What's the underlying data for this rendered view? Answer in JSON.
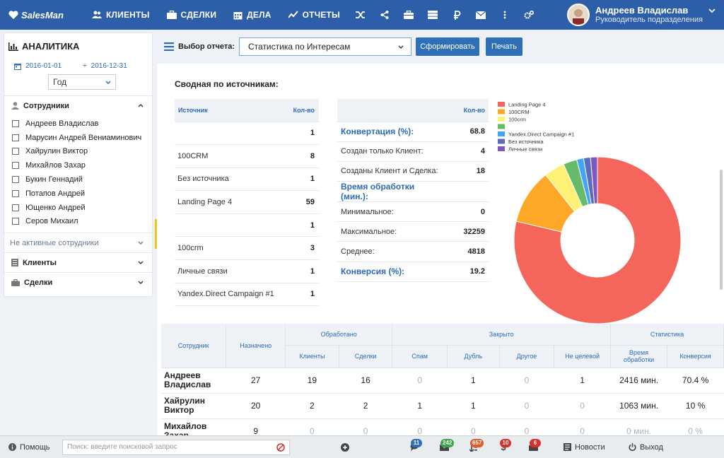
{
  "header": {
    "logo": "SalesMan",
    "nav": [
      {
        "id": "clients",
        "label": "КЛИЕНТЫ"
      },
      {
        "id": "deals",
        "label": "СДЕЛКИ"
      },
      {
        "id": "tasks",
        "label": "ДЕЛА"
      },
      {
        "id": "reports",
        "label": "ОТЧЕТЫ"
      }
    ],
    "user": {
      "name": "Андреев Владислав",
      "role": "Руководитель подразделения"
    }
  },
  "sidebar": {
    "title": "АНАЛИТИКА",
    "date_from": "2016-01-01",
    "date_to": "2016-12-31",
    "period": "Год",
    "employees_label": "Сотрудники",
    "employees": [
      "Андреев Владислав",
      "Марусин Андрей Вениаминович",
      "Хайрулин Виктор",
      "Михайлов Захар",
      "Букин Геннадий",
      "Потапов Андрей",
      "Ющенко Андрей",
      "Серов Михаил"
    ],
    "inactive_label": "Не активные сотрудники",
    "clients_label": "Клиенты",
    "deals_label": "Сделки"
  },
  "toolbar": {
    "select_label": "Выбор отчета:",
    "selected_report": "Статистика по Интересам",
    "generate": "Сформировать",
    "print": "Печать"
  },
  "summary": {
    "title": "Сводная по источникам:",
    "col_source": "Источник",
    "col_count": "Кол-во",
    "sources": [
      {
        "name": "",
        "count": "1"
      },
      {
        "name": "100CRM",
        "count": "8"
      },
      {
        "name": "Без источника",
        "count": "1"
      },
      {
        "name": "Landing Page 4",
        "count": "59"
      },
      {
        "name": "",
        "count": "1"
      },
      {
        "name": "100crm",
        "count": "3"
      },
      {
        "name": "Личные связи",
        "count": "1"
      },
      {
        "name": "Yandex.Direct Campaign #1",
        "count": "1"
      }
    ]
  },
  "conversion": {
    "col_count": "Кол-во",
    "rows": [
      {
        "label": "Конвертация (%):",
        "value": "68.8",
        "highlight": true
      },
      {
        "label": "Создан только Клиент:",
        "value": "4",
        "highlight": false
      },
      {
        "label": "Созданы Клиент и Сделка:",
        "value": "18",
        "highlight": false
      },
      {
        "label": "Время обработки (мин.):",
        "value": "",
        "highlight": true
      },
      {
        "label": "Минимальное:",
        "value": "0",
        "highlight": false
      },
      {
        "label": "Максимальное:",
        "value": "32259",
        "highlight": false
      },
      {
        "label": "Среднее:",
        "value": "4818",
        "highlight": false
      },
      {
        "label": "Конверсия (%):",
        "value": "19.2",
        "highlight": true
      }
    ]
  },
  "chart_data": {
    "type": "pie",
    "title": "",
    "legend_position": "top-left",
    "categories": [
      "Landing Page 4",
      "100CRM",
      "100crm",
      "",
      "Yandex.Direct Campaign #1",
      "Без источника",
      "Личные связи"
    ],
    "values": [
      59,
      8,
      3,
      2,
      1,
      1,
      1
    ],
    "colors": [
      "#f4655c",
      "#ffa726",
      "#fff176",
      "#66bb6a",
      "#42a5f5",
      "#5c6bc0",
      "#7e57c2"
    ],
    "donut": true
  },
  "employee_stats": {
    "headers": {
      "employee": "Сотрудник",
      "assigned": "Назначено",
      "processed": "Обработано",
      "closed": "Закрыто",
      "stats": "Статистика",
      "clients": "Клиенты",
      "deals": "Сделки",
      "spam": "Спам",
      "dup": "Дубль",
      "other": "Другое",
      "nontarget": "Не целевой",
      "time": "Время обработки",
      "conv": "Конверсия"
    },
    "rows": [
      {
        "name_line1": "Андреев",
        "name_line2": "Владислав",
        "assigned": "27",
        "clients": "19",
        "deals": "16",
        "spam": "0",
        "dup": "1",
        "other": "0",
        "nontarget": "1",
        "time": "2416 мин.",
        "conv": "70.4 %"
      },
      {
        "name_line1": "Хайрулин",
        "name_line2": "Виктор",
        "assigned": "20",
        "clients": "2",
        "deals": "2",
        "spam": "1",
        "dup": "1",
        "other": "0",
        "nontarget": "0",
        "time": "1063 мин.",
        "conv": "10 %"
      },
      {
        "name_line1": "Михайлов",
        "name_line2": "Захар",
        "assigned": "9",
        "clients": "0",
        "deals": "0",
        "spam": "0",
        "dup": "0",
        "other": "0",
        "nontarget": "0",
        "time": "0 мин.",
        "conv": "0 %"
      }
    ]
  },
  "footer": {
    "help": "Помощь",
    "search_placeholder": "Поиск: введите поисковой запрос",
    "badges": {
      "chat": "11",
      "mail": "242",
      "sort": "657",
      "money": "10",
      "briefcase": "6"
    },
    "news": "Новости",
    "logout": "Выход"
  }
}
